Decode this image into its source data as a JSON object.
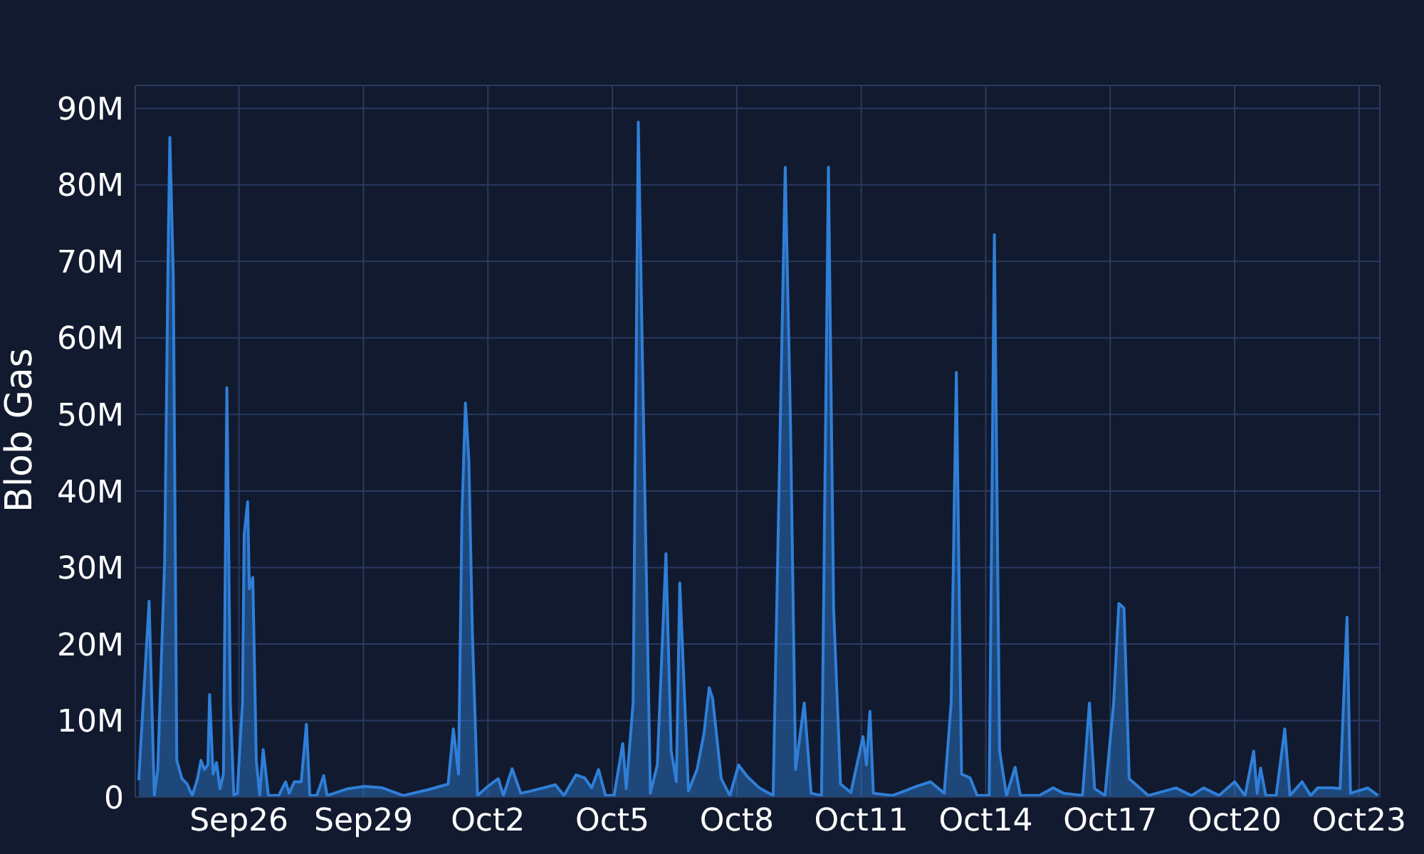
{
  "chart_data": {
    "type": "area",
    "ylabel": "Blob Gas",
    "color": "#2f7fd8",
    "grid": true,
    "xlim": [
      "--09-23T12:00",
      "--10-23T12:00"
    ],
    "xticks": [
      {
        "value": "--09-26",
        "label": "Sep26"
      },
      {
        "value": "--09-29",
        "label": "Sep29"
      },
      {
        "value": "--10-02",
        "label": "Oct2"
      },
      {
        "value": "--10-05",
        "label": "Oct5"
      },
      {
        "value": "--10-08",
        "label": "Oct8"
      },
      {
        "value": "--10-11",
        "label": "Oct11"
      },
      {
        "value": "--10-14",
        "label": "Oct14"
      },
      {
        "value": "--10-17",
        "label": "Oct17"
      },
      {
        "value": "--10-20",
        "label": "Oct20"
      },
      {
        "value": "--10-23",
        "label": "Oct23"
      }
    ],
    "ylim": [
      0,
      93000000
    ],
    "yticks": [
      {
        "value": 0,
        "label": "0"
      },
      {
        "value": 10000000,
        "label": "10M"
      },
      {
        "value": 20000000,
        "label": "20M"
      },
      {
        "value": 30000000,
        "label": "30M"
      },
      {
        "value": 40000000,
        "label": "40M"
      },
      {
        "value": 50000000,
        "label": "50M"
      },
      {
        "value": 60000000,
        "label": "60M"
      },
      {
        "value": 70000000,
        "label": "70M"
      },
      {
        "value": 80000000,
        "label": "80M"
      },
      {
        "value": 90000000,
        "label": "90M"
      }
    ],
    "x": [
      "--09-23T14:00",
      "--09-23T20:00",
      "--09-23T23:00",
      "--09-24T01:00",
      "--09-24T05:00",
      "--09-24T07:00",
      "--09-24T08:00",
      "--09-24T10:00",
      "--09-24T12:00",
      "--09-24T15:00",
      "--09-24T18:00",
      "--09-24T21:00",
      "--09-25T00:00",
      "--09-25T02:00",
      "--09-25T04:00",
      "--09-25T06:00",
      "--09-25T07:00",
      "--09-25T09:00",
      "--09-25T11:00",
      "--09-25T13:00",
      "--09-25T15:00",
      "--09-25T17:00",
      "--09-25T19:00",
      "--09-25T21:00",
      "--09-25T23:00",
      "--09-26T02:00",
      "--09-26T03:00",
      "--09-26T05:00",
      "--09-26T06:00",
      "--09-26T08:00",
      "--09-26T10:00",
      "--09-26T12:00",
      "--09-26T14:00",
      "--09-26T17:00",
      "--09-26T23:00",
      "--09-27T03:00",
      "--09-27T05:00",
      "--09-27T08:00",
      "--09-27T12:00",
      "--09-27T15:00",
      "--09-27T17:00",
      "--09-27T21:00",
      "--09-28T01:00",
      "--09-28T03:00",
      "--09-28T15:00",
      "--09-29T01:00",
      "--09-29T11:00",
      "--09-29T23:00",
      "--09-30T14:00",
      "--10-01T01:00",
      "--10-01T04:00",
      "--10-01T07:00",
      "--10-01T09:00",
      "--10-01T11:00",
      "--10-01T13:00",
      "--10-01T15:00",
      "--10-01T18:00",
      "--10-02T00:00",
      "--10-02T06:00",
      "--10-02T09:00",
      "--10-02T14:00",
      "--10-02T19:00",
      "--10-03T01:00",
      "--10-03T15:00",
      "--10-03T20:00",
      "--10-04T03:00",
      "--10-04T08:00",
      "--10-04T12:00",
      "--10-04T16:00",
      "--10-04T20:00",
      "--10-05T01:00",
      "--10-05T06:00",
      "--10-05T08:00",
      "--10-05T12:00",
      "--10-05T15:00",
      "--10-05T18:00",
      "--10-05T22:00",
      "--10-06T02:00",
      "--10-06T07:00",
      "--10-06T10:00",
      "--10-06T13:00",
      "--10-06T15:00",
      "--10-06T20:00",
      "--10-07T01:00",
      "--10-07T05:00",
      "--10-07T08:00",
      "--10-07T10:00",
      "--10-07T15:00",
      "--10-07T20:00",
      "--10-08T01:00",
      "--10-08T06:00",
      "--10-08T13:00",
      "--10-08T21:00",
      "--10-09T04:00",
      "--10-09T07:00",
      "--10-09T10:00",
      "--10-09T15:00",
      "--10-09T19:00",
      "--10-10T01:00",
      "--10-10T05:00",
      "--10-10T08:00",
      "--10-10T12:00",
      "--10-10T18:00",
      "--10-11T01:00",
      "--10-11T03:00",
      "--10-11T05:00",
      "--10-11T07:00",
      "--10-11T18:00",
      "--10-12T08:00",
      "--10-12T16:00",
      "--10-13T00:00",
      "--10-13T04:00",
      "--10-13T07:00",
      "--10-13T10:00",
      "--10-13T15:00",
      "--10-13T19:00",
      "--10-14T02:00",
      "--10-14T05:00",
      "--10-14T08:00",
      "--10-14T12:00",
      "--10-14T17:00",
      "--10-14T20:00",
      "--10-15T07:00",
      "--10-15T15:00",
      "--10-15T21:00",
      "--10-16T08:00",
      "--10-16T12:00",
      "--10-16T15:00",
      "--10-16T21:00",
      "--10-17T02:00",
      "--10-17T05:00",
      "--10-17T08:00",
      "--10-17T11:00",
      "--10-17T17:00",
      "--10-17T22:00",
      "--10-18T14:00",
      "--10-18T23:00",
      "--10-19T06:00",
      "--10-19T15:00",
      "--10-20T00:00",
      "--10-20T06:00",
      "--10-20T11:00",
      "--10-20T13:00",
      "--10-20T15:00",
      "--10-20T18:00",
      "--10-21T00:00",
      "--10-21T05:00",
      "--10-21T08:00",
      "--10-21T15:00",
      "--10-21T20:00",
      "--10-22T00:00",
      "--10-22T09:00",
      "--10-22T13:00",
      "--10-22T17:00",
      "--10-22T19:00",
      "--10-23T05:00",
      "--10-23T11:00"
    ],
    "values": [
      2200000,
      25600000,
      200000,
      3600000,
      30900000,
      71000000,
      86200000,
      68000000,
      4800000,
      2400000,
      1700000,
      200000,
      2400000,
      4800000,
      3600000,
      4200000,
      13400000,
      3000000,
      4500000,
      1100000,
      3000000,
      53500000,
      12300000,
      200000,
      500000,
      12300000,
      34300000,
      38600000,
      27200000,
      28700000,
      4800000,
      200000,
      6200000,
      200000,
      200000,
      2000000,
      500000,
      2000000,
      2000000,
      9500000,
      200000,
      200000,
      2800000,
      200000,
      1100000,
      1400000,
      1200000,
      200000,
      1000000,
      1700000,
      8900000,
      3000000,
      37100000,
      51500000,
      43900000,
      21600000,
      200000,
      1400000,
      2400000,
      200000,
      3700000,
      500000,
      800000,
      1600000,
      200000,
      2900000,
      2500000,
      1200000,
      3600000,
      200000,
      200000,
      7000000,
      1100000,
      12300000,
      88200000,
      49500000,
      500000,
      4200000,
      31800000,
      6100000,
      2000000,
      28000000,
      800000,
      3600000,
      8300000,
      14300000,
      12900000,
      2400000,
      200000,
      4200000,
      2700000,
      1200000,
      200000,
      82300000,
      49500000,
      3600000,
      12300000,
      500000,
      200000,
      82300000,
      24700000,
      1700000,
      600000,
      7900000,
      4200000,
      11200000,
      500000,
      200000,
      1400000,
      2000000,
      500000,
      12300000,
      55500000,
      3000000,
      2500000,
      200000,
      200000,
      73500000,
      6100000,
      200000,
      3900000,
      200000,
      200000,
      1200000,
      500000,
      200000,
      12300000,
      1100000,
      200000,
      12300000,
      25300000,
      24700000,
      2400000,
      1200000,
      200000,
      1200000,
      200000,
      1200000,
      200000,
      2000000,
      200000,
      6000000,
      500000,
      3800000,
      200000,
      200000,
      8900000,
      200000,
      2000000,
      200000,
      1200000,
      1200000,
      1100000,
      23500000,
      500000,
      1200000,
      200000
    ]
  }
}
